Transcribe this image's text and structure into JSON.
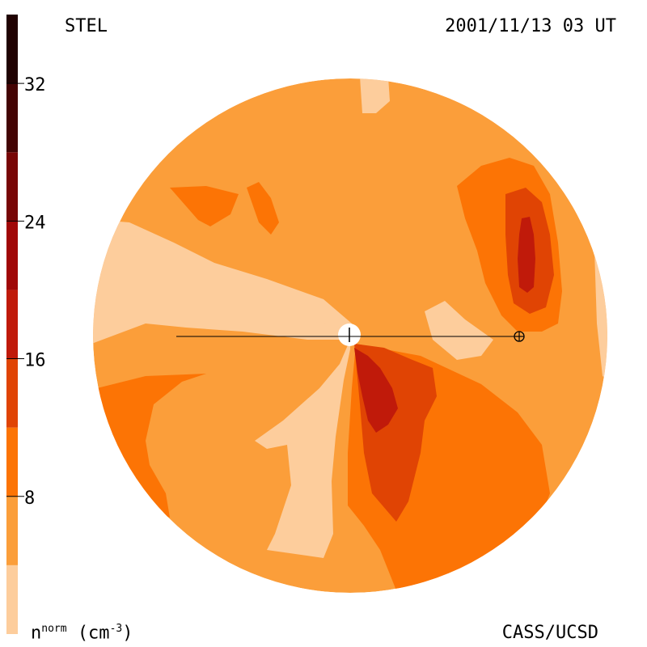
{
  "header": {
    "instrument": "STEL",
    "timestamp": "2001/11/13 03 UT"
  },
  "footer": {
    "credit": "CASS/UCSD",
    "quantity_symbol": "n",
    "quantity_sup": "norm",
    "quantity_unit": "(cm",
    "quantity_unit_sup": "-3",
    "quantity_close": ")"
  },
  "colorbar": {
    "tick_labels": [
      "32",
      "24",
      "16",
      "8"
    ],
    "tick_values": [
      32,
      24,
      16,
      8
    ],
    "range": [
      0,
      36
    ],
    "levels": [
      {
        "from": 0,
        "to": 4,
        "color": "#fdcd9c"
      },
      {
        "from": 4,
        "to": 8,
        "color": "#fb9e3a"
      },
      {
        "from": 8,
        "to": 12,
        "color": "#fc7405"
      },
      {
        "from": 12,
        "to": 16,
        "color": "#e04404"
      },
      {
        "from": 16,
        "to": 20,
        "color": "#c01a0a"
      },
      {
        "from": 20,
        "to": 24,
        "color": "#a00808"
      },
      {
        "from": 24,
        "to": 28,
        "color": "#780606"
      },
      {
        "from": 28,
        "to": 32,
        "color": "#440404"
      },
      {
        "from": 32,
        "to": 36,
        "color": "#200202"
      }
    ]
  },
  "colors": {
    "background_fill": "#fb9e3a",
    "low_density": "#fdcd9c",
    "medium_density": "#fc7405",
    "high_density": "#e04404",
    "peak_density": "#c01a0a",
    "sun": "#ffffff"
  },
  "markers": {
    "sun_icon": "sun-disk-icon",
    "earth_icon": "earth-symbol-icon"
  }
}
